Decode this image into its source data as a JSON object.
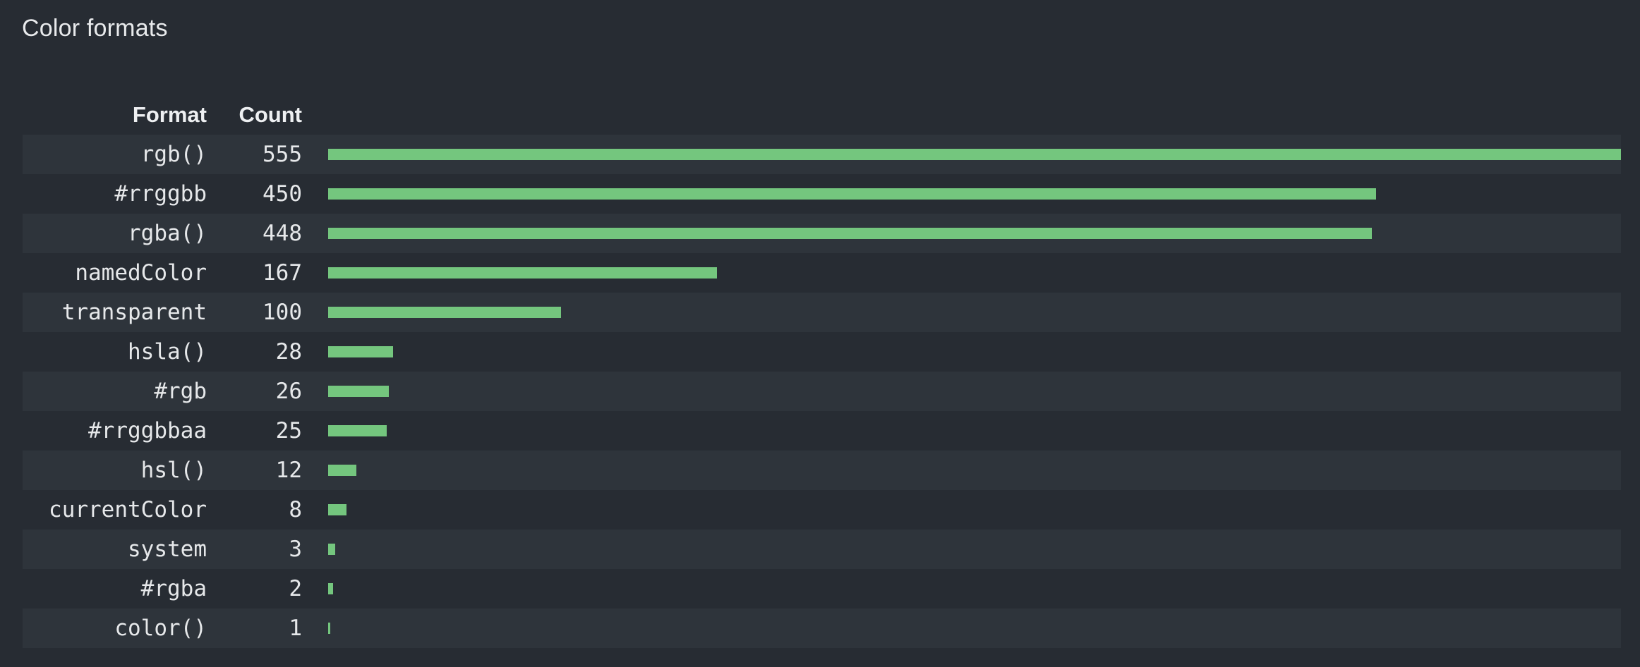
{
  "title": "Color formats",
  "colors": {
    "background": "#272c33",
    "row_stripe": "#2e343b",
    "bar": "#74c67e",
    "text": "#e6e8ea",
    "heading": "#eef0f2"
  },
  "chart_data": {
    "type": "bar",
    "orientation": "horizontal",
    "title": "Color formats",
    "columns": [
      "Format",
      "Count"
    ],
    "categories": [
      "rgb()",
      "#rrggbb",
      "rgba()",
      "namedColor",
      "transparent",
      "hsla()",
      "#rgb",
      "#rrggbbaa",
      "hsl()",
      "currentColor",
      "system",
      "#rgba",
      "color()"
    ],
    "values": [
      555,
      450,
      448,
      167,
      100,
      28,
      26,
      25,
      12,
      8,
      3,
      2,
      1
    ],
    "xlim": [
      0,
      555
    ],
    "grid": false,
    "legend": false,
    "row_striping": "odd-rows-highlighted"
  }
}
